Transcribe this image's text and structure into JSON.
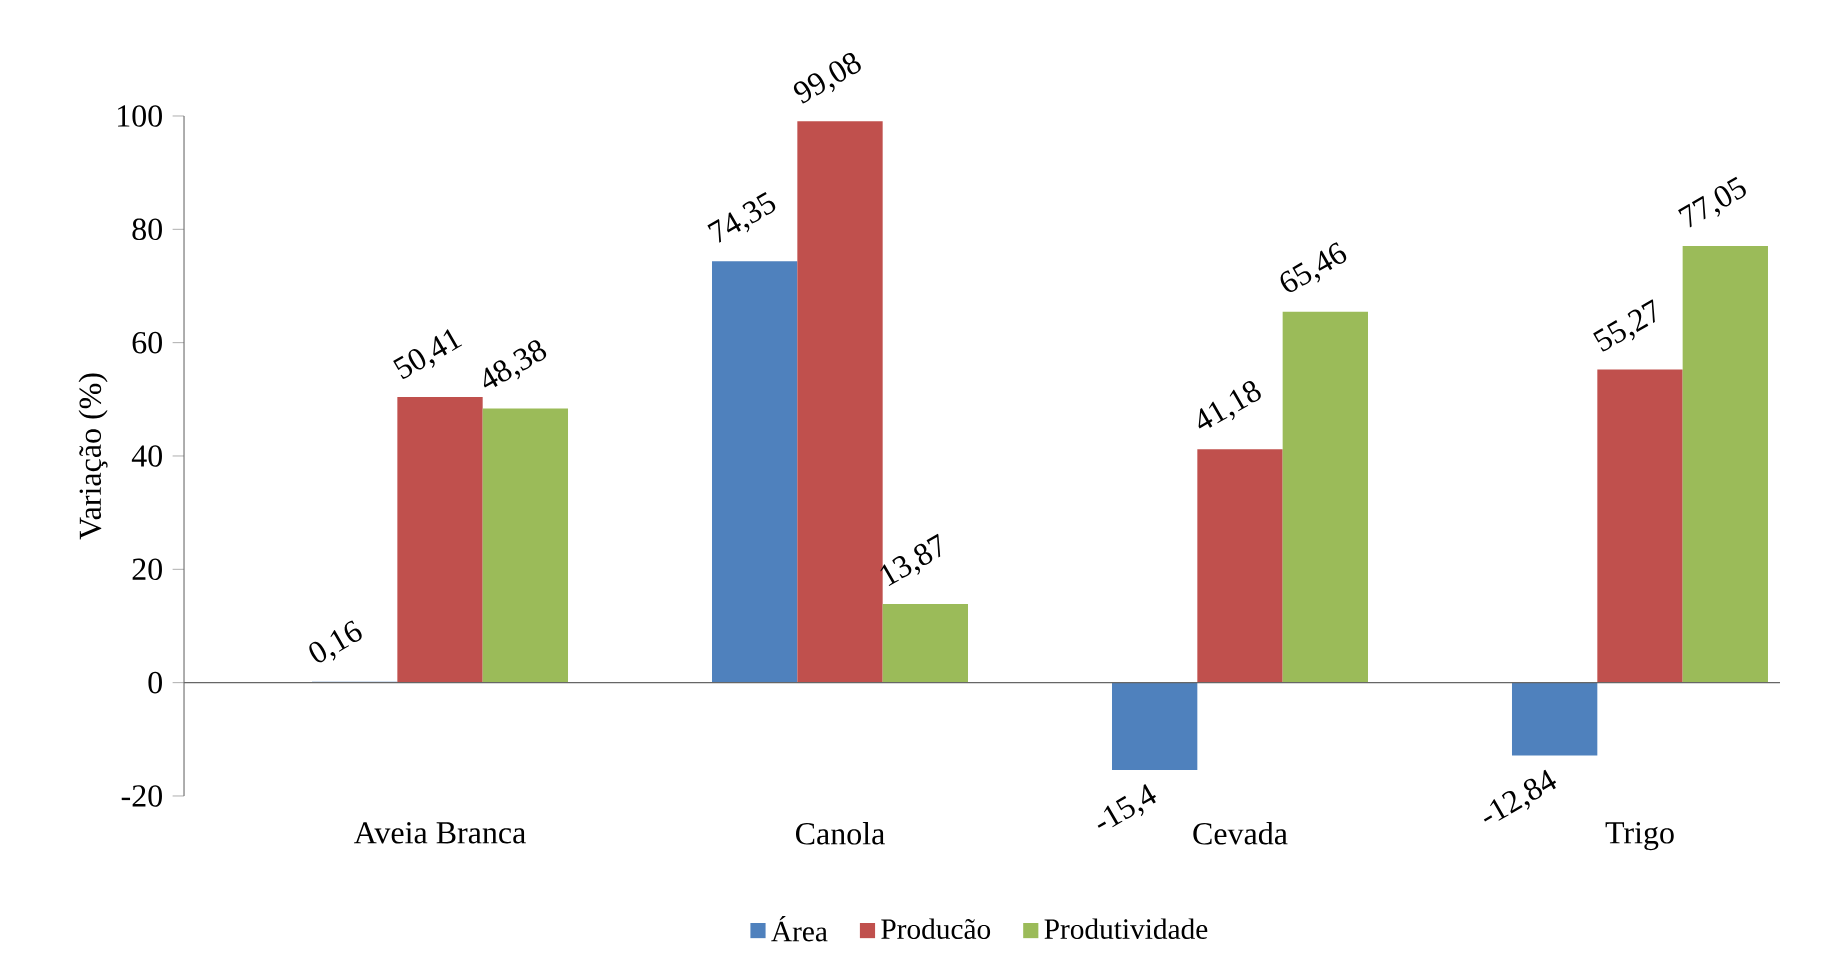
{
  "chart_data": {
    "type": "bar",
    "ylabel": "Variação (%)",
    "categories": [
      "Aveia Branca",
      "Canola",
      "Cevada",
      "Trigo"
    ],
    "series": [
      {
        "name": "Área",
        "color": "#4f81bd",
        "values": [
          0.16,
          74.35,
          -15.4,
          -12.84
        ],
        "value_labels": [
          "0,16",
          "74,35",
          "-15,4",
          "-12,84"
        ]
      },
      {
        "name": "Producão",
        "color": "#c0504d",
        "values": [
          50.41,
          99.08,
          41.18,
          55.27
        ],
        "value_labels": [
          "50,41",
          "99,08",
          "41,18",
          "55,27"
        ]
      },
      {
        "name": "Produtividade",
        "color": "#9bbb59",
        "values": [
          48.38,
          13.87,
          65.46,
          77.05
        ],
        "value_labels": [
          "48,38",
          "13,87",
          "65,46",
          "77,05"
        ]
      }
    ],
    "ylim": [
      -20,
      100
    ],
    "yticks": [
      -20,
      0,
      20,
      40,
      60,
      80,
      100
    ],
    "legend": "bottom"
  }
}
